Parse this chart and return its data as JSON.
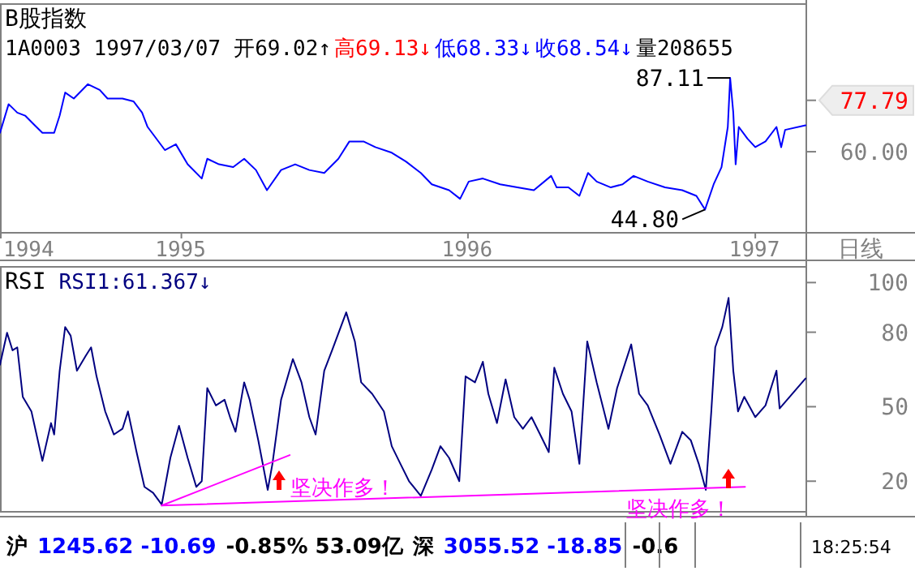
{
  "chart_data": [
    {
      "type": "line",
      "title": "B股指数",
      "xlabel": "日线",
      "log": true,
      "annotations": [
        "1A0003 1997/03/07",
        "开69.02↑",
        "高69.13↓",
        "低68.33↓",
        "收68.54↓",
        "量208655",
        {
          "text": "87.11",
          "x": "1996-12-01",
          "y": 87.11
        },
        {
          "text": "44.80",
          "x": "1996-10-30",
          "y": 44.8
        }
      ],
      "xlim": [
        "1994-05-16",
        "1997-03-08"
      ],
      "xticks": [
        {
          "value": "1994-05-16",
          "label": "1994"
        },
        {
          "value": "1995-01-01",
          "label": "1995"
        },
        {
          "value": "1996-01-01",
          "label": "1996"
        },
        {
          "value": "1997-01-01",
          "label": "1997"
        }
      ],
      "ylim": [
        40,
        126
      ],
      "yticks": [
        {
          "value": 60,
          "label": "60.00"
        },
        {
          "value": 77.79,
          "label": "77.79"
        }
      ],
      "series": [
        {
          "color": "#0000ff",
          "x": [
            "1994-05-16",
            "1994-05-27",
            "1994-06-07",
            "1994-06-17",
            "1994-06-28",
            "1994-07-09",
            "1994-07-24",
            "1994-07-31",
            "1994-08-07",
            "1994-08-18",
            "1994-09-05",
            "1994-09-20",
            "1994-09-30",
            "1994-10-19",
            "1994-11-02",
            "1994-11-13",
            "1994-11-20",
            "1994-12-12",
            "1994-12-26",
            "1995-01-10",
            "1995-01-28",
            "1995-02-04",
            "1995-02-19",
            "1995-03-09",
            "1995-03-23",
            "1995-04-07",
            "1995-04-21",
            "1995-05-09",
            "1995-05-27",
            "1995-06-14",
            "1995-07-03",
            "1995-07-21",
            "1995-08-04",
            "1995-08-22",
            "1995-09-06",
            "1995-09-27",
            "1995-10-15",
            "1995-11-03",
            "1995-11-17",
            "1995-12-09",
            "1995-12-23",
            "1996-01-03",
            "1996-01-21",
            "1996-02-12",
            "1996-03-05",
            "1996-03-26",
            "1996-04-17",
            "1996-04-24",
            "1996-05-09",
            "1996-05-23",
            "1996-06-03",
            "1996-06-14",
            "1996-07-02",
            "1996-07-17",
            "1996-07-31",
            "1996-08-18",
            "1996-09-09",
            "1996-10-01",
            "1996-10-19",
            "1996-10-30",
            "1996-11-10",
            "1996-11-20",
            "1996-11-28",
            "1996-12-01",
            "1996-12-05",
            "1996-12-08",
            "1996-12-12",
            "1996-12-23",
            "1997-01-02",
            "1997-01-15",
            "1997-01-29",
            "1997-02-04",
            "1997-02-09",
            "1997-03-07"
          ],
          "values": [
            66.0,
            76.3,
            73.1,
            72.0,
            68.9,
            66.0,
            66.0,
            72.0,
            80.9,
            78.5,
            84.4,
            82.0,
            78.5,
            78.5,
            77.4,
            73.1,
            68.0,
            60.5,
            62.3,
            56.3,
            52.4,
            57.9,
            56.3,
            55.5,
            57.9,
            54.7,
            49.4,
            54.7,
            56.3,
            54.7,
            53.9,
            57.9,
            63.2,
            63.2,
            61.4,
            59.7,
            57.1,
            53.9,
            50.9,
            49.4,
            47.3,
            51.6,
            52.4,
            50.9,
            50.1,
            49.4,
            53.1,
            50.1,
            50.1,
            48.0,
            53.9,
            51.6,
            50.1,
            50.9,
            53.1,
            51.6,
            50.1,
            49.4,
            48.0,
            44.8,
            50.9,
            55.5,
            68.0,
            87.11,
            73.1,
            56.3,
            68.0,
            64.1,
            61.4,
            63.2,
            68.0,
            61.4,
            67.0,
            68.54
          ]
        }
      ]
    },
    {
      "type": "line",
      "title": "RSI",
      "tick_labels": "y",
      "annotations": [
        "RSI1:61.367↓",
        "沪",
        "1245.62 -10.69",
        "-0.85% 53.09亿",
        "深",
        "3055.52 -18.85",
        "-0.6",
        "18:25:54",
        "坚决作多！",
        "坚决作多！"
      ],
      "xlim": [
        "1994-05-16",
        "1997-03-08"
      ],
      "ylim": [
        8,
        106
      ],
      "yticks": [
        20,
        50,
        80,
        100
      ],
      "series": [
        {
          "color": "#000080",
          "x": [
            "1994-05-16",
            "1994-05-25",
            "1994-06-01",
            "1994-06-07",
            "1994-06-14",
            "1994-06-25",
            "1994-07-09",
            "1994-07-20",
            "1994-07-24",
            "1994-07-31",
            "1994-08-07",
            "1994-08-14",
            "1994-08-22",
            "1994-09-02",
            "1994-09-09",
            "1994-09-16",
            "1994-09-27",
            "1994-10-08",
            "1994-10-19",
            "1994-10-26",
            "1994-11-06",
            "1994-11-16",
            "1994-11-27",
            "1994-12-08",
            "1994-12-19",
            "1994-12-30",
            "1995-01-10",
            "1995-01-21",
            "1995-01-28",
            "1995-02-04",
            "1995-02-15",
            "1995-02-26",
            "1995-03-05",
            "1995-03-12",
            "1995-03-23",
            "1995-03-30",
            "1995-04-10",
            "1995-04-22",
            "1995-04-28",
            "1995-05-09",
            "1995-05-24",
            "1995-06-04",
            "1995-06-14",
            "1995-06-22",
            "1995-07-03",
            "1995-07-13",
            "1995-07-31",
            "1995-08-11",
            "1995-08-19",
            "1995-09-02",
            "1995-09-17",
            "1995-09-27",
            "1995-10-08",
            "1995-10-19",
            "1995-11-03",
            "1995-11-17",
            "1995-11-28",
            "1995-12-09",
            "1995-12-22",
            "1995-12-30",
            "1996-01-11",
            "1996-01-21",
            "1996-01-28",
            "1996-02-08",
            "1996-02-19",
            "1996-03-01",
            "1996-03-12",
            "1996-03-23",
            "1996-04-03",
            "1996-04-14",
            "1996-04-21",
            "1996-05-02",
            "1996-05-13",
            "1996-05-23",
            "1996-06-02",
            "1996-06-14",
            "1996-06-29",
            "1996-07-10",
            "1996-07-28",
            "1996-08-07",
            "1996-08-18",
            "1996-09-02",
            "1996-09-16",
            "1996-10-01",
            "1996-10-12",
            "1996-10-22",
            "1996-10-31",
            "1996-11-07",
            "1996-11-12",
            "1996-11-21",
            "1996-11-29",
            "1996-12-05",
            "1996-12-11",
            "1996-12-19",
            "1997-01-02",
            "1997-01-15",
            "1997-01-29",
            "1997-02-02",
            "1997-03-07"
          ],
          "values": [
            66.9,
            79.8,
            72.7,
            73.9,
            54.0,
            48.1,
            28.2,
            43.4,
            38.8,
            64.5,
            82.1,
            78.6,
            64.5,
            70.4,
            73.9,
            62.2,
            48.1,
            38.8,
            41.1,
            48.1,
            31.7,
            17.7,
            15.3,
            10.6,
            29.4,
            42.3,
            29.4,
            17.7,
            20.0,
            57.5,
            50.5,
            52.8,
            45.8,
            39.9,
            59.8,
            52.8,
            36.4,
            16.5,
            27.0,
            52.8,
            69.2,
            59.8,
            45.8,
            38.8,
            64.5,
            72.7,
            88.0,
            76.3,
            59.8,
            55.2,
            48.1,
            34.1,
            27.0,
            20.0,
            14.1,
            24.7,
            34.1,
            29.4,
            20.0,
            62.2,
            59.8,
            68.1,
            55.2,
            43.4,
            61.0,
            45.8,
            41.1,
            45.8,
            38.8,
            31.7,
            65.7,
            55.2,
            48.1,
            27.0,
            76.3,
            59.8,
            41.1,
            57.5,
            75.1,
            55.2,
            50.5,
            38.8,
            27.0,
            39.9,
            36.4,
            27.0,
            16.5,
            48.1,
            73.9,
            82.1,
            93.8,
            64.5,
            48.1,
            54.0,
            45.8,
            50.5,
            64.5,
            49.3,
            61.4
          ]
        },
        {
          "color": "#ff00ff",
          "x": [
            "1994-12-08",
            "1995-05-20"
          ],
          "values": [
            10.2,
            30.5
          ]
        },
        {
          "color": "#ff00ff",
          "x": [
            "1994-12-08",
            "1996-12-20"
          ],
          "values": [
            10.2,
            17.7
          ]
        }
      ]
    }
  ]
}
